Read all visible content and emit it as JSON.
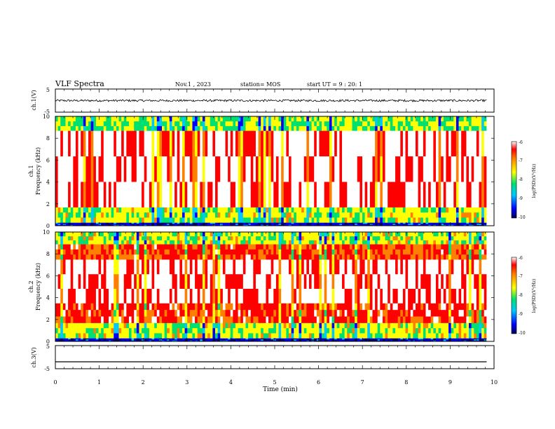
{
  "header": {
    "title": "VLF Spectra",
    "date": "Nov.1 , 2023",
    "station": "station= MOS",
    "start": "start UT = 9 : 20: 1"
  },
  "colors": {
    "spectrum": [
      "#000066",
      "#0000ff",
      "#00c8ff",
      "#00e070",
      "#ffff00",
      "#ff8000",
      "#ff0000",
      "#ffffff"
    ],
    "trace": "#000000",
    "axis": "#000000"
  },
  "colorbar": {
    "label": "log(PSD)(V²/Hz)",
    "ticks": [
      "-6",
      "-7",
      "-8",
      "-9",
      "-10"
    ]
  },
  "chart_data": [
    {
      "type": "line",
      "ylabel": "ch.1(V)",
      "ylim": [
        -5,
        5
      ],
      "yticks": [
        "5",
        "-5"
      ],
      "xlim": [
        0,
        10
      ],
      "series": [
        {
          "x": [
            0,
            9.83
          ],
          "values": [
            0,
            0
          ]
        }
      ]
    },
    {
      "type": "heatmap",
      "ylabel_top": "ch.1",
      "ylabel": "Frequency (kHz)",
      "ylim": [
        0,
        10
      ],
      "yticks": [
        "0",
        "2",
        "4",
        "6",
        "8",
        "10"
      ],
      "xlim": [
        0,
        10
      ],
      "zlabel": "log(PSD)(V²/Hz)",
      "zrange": [
        -10,
        -6
      ],
      "bands_khz": [
        {
          "from": 0,
          "to": 0.3,
          "level": -9.5
        },
        {
          "from": 0.3,
          "to": 1.7,
          "level": -7.8
        },
        {
          "from": 1.7,
          "to": 8.7,
          "level": -6.2
        },
        {
          "from": 8.7,
          "to": 10,
          "level": -8.0
        }
      ]
    },
    {
      "type": "heatmap",
      "ylabel_top": "ch.2",
      "ylabel": "Frequency (kHz)",
      "ylim": [
        0,
        10
      ],
      "yticks": [
        "0",
        "2",
        "4",
        "6",
        "8",
        "10"
      ],
      "xlim": [
        0,
        10
      ],
      "zlabel": "log(PSD)(V²/Hz)",
      "zrange": [
        -10,
        -6
      ],
      "bands_khz": [
        {
          "from": 0,
          "to": 0.3,
          "level": -9.5
        },
        {
          "from": 0.3,
          "to": 1.7,
          "level": -7.8
        },
        {
          "from": 1.7,
          "to": 3.5,
          "level": -6.6
        },
        {
          "from": 3.5,
          "to": 7.5,
          "level": -6.2
        },
        {
          "from": 7.5,
          "to": 8.9,
          "level": -6.7
        },
        {
          "from": 8.9,
          "to": 10,
          "level": -7.8
        }
      ]
    },
    {
      "type": "line",
      "ylabel": "ch.3(V)",
      "ylim": [
        -5,
        5
      ],
      "yticks": [
        "5",
        "-5"
      ],
      "xlim": [
        0,
        10
      ],
      "xlabel": "Time (min)",
      "xticks": [
        "0",
        "1",
        "2",
        "3",
        "4",
        "5",
        "6",
        "7",
        "8",
        "9",
        "10"
      ],
      "series": [
        {
          "x": [
            0,
            9.83
          ],
          "values": [
            -2,
            -2
          ]
        }
      ]
    }
  ]
}
